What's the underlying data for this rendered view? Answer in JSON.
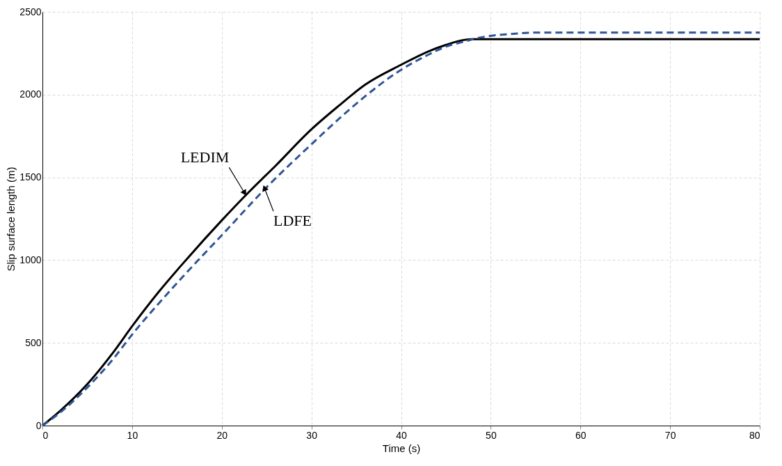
{
  "chart_data": {
    "type": "line",
    "xlabel": "Time (s)",
    "ylabel": "Slip surface length (m)",
    "xlim": [
      0,
      80
    ],
    "ylim": [
      0,
      2500
    ],
    "xticks": [
      0,
      10,
      20,
      30,
      40,
      50,
      60,
      70,
      80
    ],
    "yticks": [
      0,
      500,
      1000,
      1500,
      2000,
      2500
    ],
    "grid": true,
    "marker": "none",
    "series": [
      {
        "color": "#000000",
        "line_style": "solid",
        "x": [
          0,
          2,
          5,
          8,
          10,
          13,
          16,
          20,
          23,
          26,
          30,
          33,
          36,
          40,
          43,
          45,
          47,
          48,
          50,
          60,
          70,
          80
        ],
        "values": [
          0,
          90,
          250,
          450,
          600,
          810,
          1000,
          1240,
          1410,
          1570,
          1790,
          1930,
          2060,
          2180,
          2260,
          2300,
          2330,
          2335,
          2335,
          2335,
          2335,
          2335
        ]
      },
      {
        "color": "#2f5597",
        "line_style": "dashed",
        "x": [
          0,
          2,
          5,
          8,
          10,
          13,
          16,
          20,
          25,
          30,
          33,
          36,
          40,
          43,
          45,
          47,
          48,
          50,
          52,
          55,
          60,
          70,
          80
        ],
        "values": [
          0,
          80,
          230,
          410,
          550,
          740,
          920,
          1150,
          1440,
          1700,
          1850,
          1990,
          2150,
          2240,
          2290,
          2320,
          2335,
          2355,
          2365,
          2375,
          2375,
          2375,
          2375
        ]
      }
    ],
    "annotations": [
      {
        "text": "LEDIM",
        "x": 22.5,
        "y": 1410
      },
      {
        "text": "LDFE",
        "x": 24.8,
        "y": 1430
      }
    ]
  }
}
